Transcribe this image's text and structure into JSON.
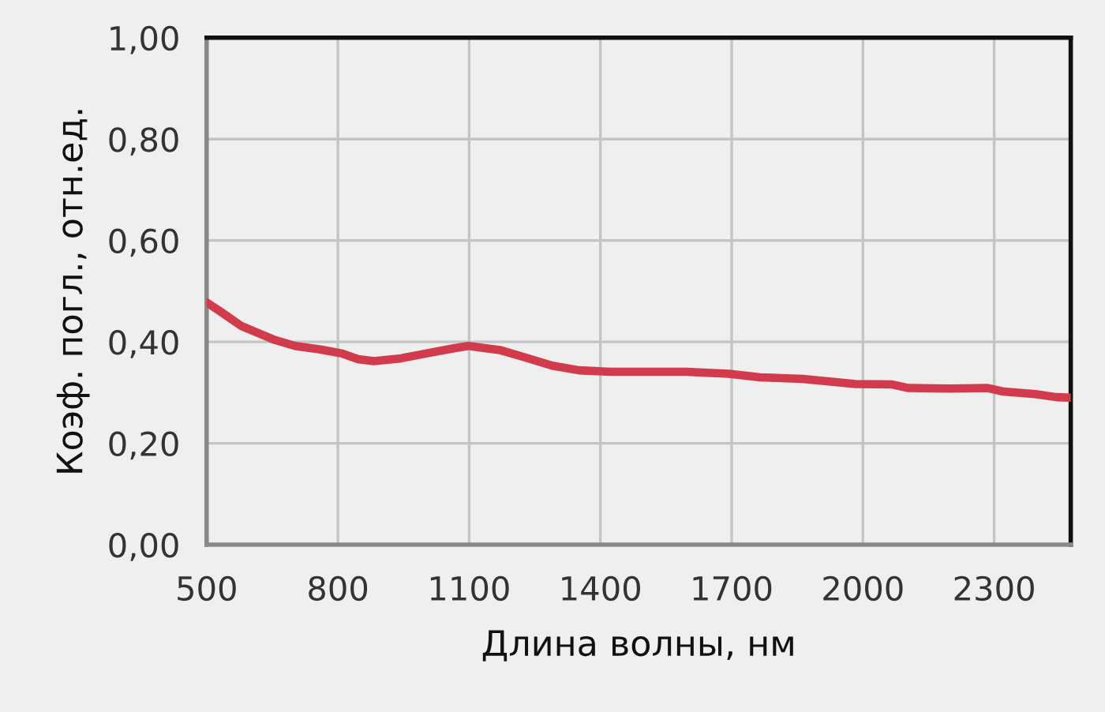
{
  "chart_data": {
    "type": "line",
    "xlabel": "Длина волны, нм",
    "ylabel": "Коэф. погл., отн.ед.",
    "series": [
      {
        "color": "#d13b4b",
        "x": [
          500,
          533,
          580,
          652,
          702,
          760,
          810,
          846,
          882,
          941,
          1001,
          1062,
          1098,
          1170,
          1229,
          1290,
          1351,
          1423,
          1475,
          1506,
          1596,
          1693,
          1765,
          1862,
          1983,
          2067,
          2104,
          2200,
          2285,
          2321,
          2394,
          2442,
          2475
        ],
        "values": [
          0.478,
          0.459,
          0.431,
          0.405,
          0.392,
          0.385,
          0.377,
          0.366,
          0.362,
          0.367,
          0.377,
          0.387,
          0.392,
          0.384,
          0.369,
          0.353,
          0.344,
          0.341,
          0.341,
          0.341,
          0.341,
          0.337,
          0.33,
          0.327,
          0.317,
          0.316,
          0.309,
          0.308,
          0.309,
          0.302,
          0.297,
          0.291,
          0.29
        ]
      }
    ],
    "xlim": [
      500,
      2475
    ],
    "xticks": [
      500,
      800,
      1100,
      1400,
      1700,
      2000,
      2300
    ],
    "ylim": [
      0,
      1
    ],
    "yticks": [
      {
        "value": 0,
        "label": "0,00"
      },
      {
        "value": 0.2,
        "label": "0,20"
      },
      {
        "value": 0.4,
        "label": "0,40"
      },
      {
        "value": 0.6,
        "label": "0,60"
      },
      {
        "value": 0.8,
        "label": "0,80"
      },
      {
        "value": 1,
        "label": "1,00"
      }
    ],
    "grid": true,
    "marker": "none",
    "line_style": "solid"
  }
}
